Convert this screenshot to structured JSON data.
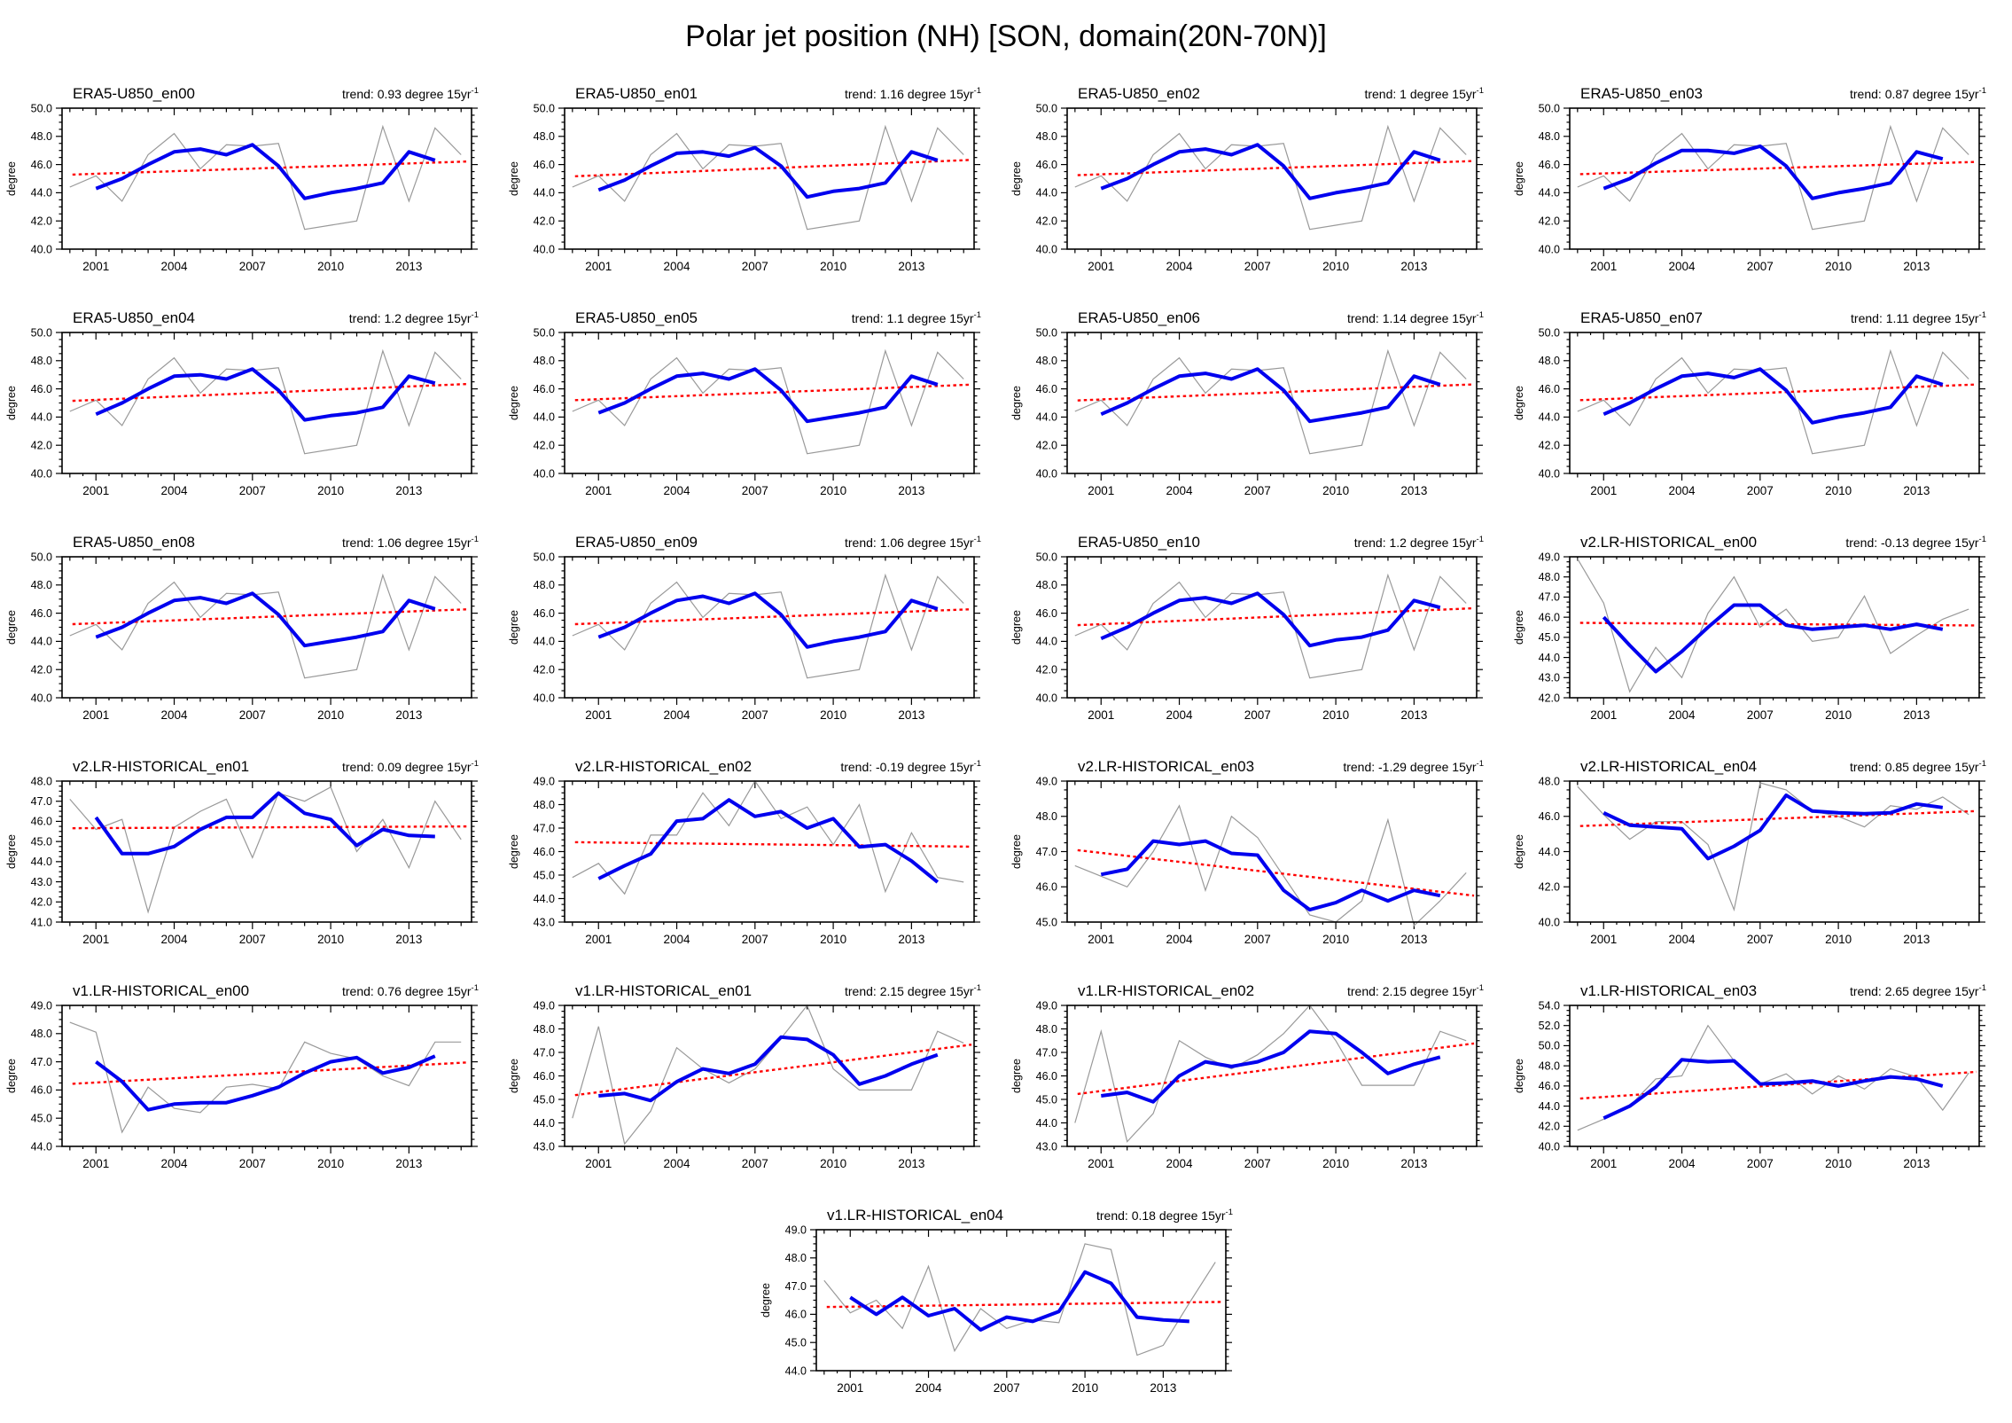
{
  "figure": {
    "title": "Polar jet position (NH) [SON, domain(20N-70N)]",
    "trend_sup": "-1"
  },
  "colors": {
    "raw_line": "#999999",
    "smoothed_line": "#0000ee",
    "trend_line": "#ff0000",
    "frame": "#000000"
  },
  "axes": {
    "ylabel": "degree",
    "x_start": 1999.7,
    "x_end": 2015.4,
    "xticks": [
      2001,
      2004,
      2007,
      2010,
      2013
    ],
    "x_minor_step": 0.5,
    "raw_year_start": 2000,
    "smoothed_year_start": 2001
  },
  "chart_data": [
    {
      "type": "line",
      "name": "ERA5-U850_en00",
      "trend_text": "trend: 0.93 degree 15yr",
      "ymin": 40,
      "ymax": 50,
      "ystep": 2,
      "raw": [
        44.4,
        45.2,
        43.4,
        46.7,
        48.2,
        45.7,
        47.4,
        47.3,
        47.5,
        41.4,
        41.7,
        42.0,
        48.7,
        43.4,
        48.6,
        46.7
      ],
      "smoothed": [
        44.3,
        45.0,
        46.0,
        46.9,
        47.1,
        46.7,
        47.4,
        45.9,
        43.6,
        44.0,
        44.3,
        44.7,
        46.9,
        46.3
      ],
      "trend_line": [
        45.29,
        46.22
      ]
    },
    {
      "type": "line",
      "name": "ERA5-U850_en01",
      "trend_text": "trend: 1.16 degree 15yr",
      "ymin": 40,
      "ymax": 50,
      "ystep": 2,
      "raw": [
        44.4,
        45.2,
        43.4,
        46.7,
        48.2,
        45.7,
        47.4,
        47.3,
        47.5,
        41.4,
        41.7,
        42.0,
        48.7,
        43.4,
        48.6,
        46.7
      ],
      "smoothed": [
        44.2,
        44.9,
        45.9,
        46.8,
        46.9,
        46.6,
        47.2,
        45.9,
        43.7,
        44.1,
        44.3,
        44.7,
        46.9,
        46.3
      ],
      "trend_line": [
        45.17,
        46.33
      ]
    },
    {
      "type": "line",
      "name": "ERA5-U850_en02",
      "trend_text": "trend: 1 degree 15yr",
      "ymin": 40,
      "ymax": 50,
      "ystep": 2,
      "raw": [
        44.4,
        45.2,
        43.4,
        46.7,
        48.2,
        45.7,
        47.4,
        47.3,
        47.5,
        41.4,
        41.7,
        42.0,
        48.7,
        43.4,
        48.6,
        46.7
      ],
      "smoothed": [
        44.3,
        45.0,
        46.0,
        46.9,
        47.1,
        46.7,
        47.4,
        45.9,
        43.6,
        44.0,
        44.3,
        44.7,
        46.9,
        46.3
      ],
      "trend_line": [
        45.25,
        46.25
      ]
    },
    {
      "type": "line",
      "name": "ERA5-U850_en03",
      "trend_text": "trend: 0.87 degree 15yr",
      "ymin": 40,
      "ymax": 50,
      "ystep": 2,
      "raw": [
        44.4,
        45.2,
        43.4,
        46.7,
        48.2,
        45.7,
        47.4,
        47.3,
        47.5,
        41.4,
        41.7,
        42.0,
        48.7,
        43.4,
        48.6,
        46.7
      ],
      "smoothed": [
        44.3,
        45.0,
        46.1,
        47.0,
        47.0,
        46.8,
        47.3,
        45.9,
        43.6,
        44.0,
        44.3,
        44.7,
        46.9,
        46.4
      ],
      "trend_line": [
        45.32,
        46.19
      ]
    },
    {
      "type": "line",
      "name": "ERA5-U850_en04",
      "trend_text": "trend: 1.2 degree 15yr",
      "ymin": 40,
      "ymax": 50,
      "ystep": 2,
      "raw": [
        44.4,
        45.2,
        43.4,
        46.7,
        48.2,
        45.7,
        47.4,
        47.3,
        47.5,
        41.4,
        41.7,
        42.0,
        48.7,
        43.4,
        48.6,
        46.7
      ],
      "smoothed": [
        44.2,
        45.0,
        46.0,
        46.9,
        47.0,
        46.7,
        47.4,
        45.9,
        43.8,
        44.1,
        44.3,
        44.7,
        46.9,
        46.4
      ],
      "trend_line": [
        45.15,
        46.35
      ]
    },
    {
      "type": "line",
      "name": "ERA5-U850_en05",
      "trend_text": "trend: 1.1 degree 15yr",
      "ymin": 40,
      "ymax": 50,
      "ystep": 2,
      "raw": [
        44.4,
        45.2,
        43.4,
        46.7,
        48.2,
        45.7,
        47.4,
        47.3,
        47.5,
        41.4,
        41.7,
        42.0,
        48.7,
        43.4,
        48.6,
        46.7
      ],
      "smoothed": [
        44.3,
        45.0,
        46.0,
        46.9,
        47.1,
        46.7,
        47.4,
        45.9,
        43.7,
        44.0,
        44.3,
        44.7,
        46.9,
        46.3
      ],
      "trend_line": [
        45.2,
        46.3
      ]
    },
    {
      "type": "line",
      "name": "ERA5-U850_en06",
      "trend_text": "trend: 1.14 degree 15yr",
      "ymin": 40,
      "ymax": 50,
      "ystep": 2,
      "raw": [
        44.4,
        45.2,
        43.4,
        46.7,
        48.2,
        45.7,
        47.4,
        47.3,
        47.5,
        41.4,
        41.7,
        42.0,
        48.7,
        43.4,
        48.6,
        46.7
      ],
      "smoothed": [
        44.2,
        45.0,
        46.0,
        46.9,
        47.1,
        46.7,
        47.4,
        45.9,
        43.7,
        44.0,
        44.3,
        44.7,
        46.9,
        46.3
      ],
      "trend_line": [
        45.18,
        46.32
      ]
    },
    {
      "type": "line",
      "name": "ERA5-U850_en07",
      "trend_text": "trend: 1.11 degree 15yr",
      "ymin": 40,
      "ymax": 50,
      "ystep": 2,
      "raw": [
        44.4,
        45.2,
        43.4,
        46.7,
        48.2,
        45.7,
        47.4,
        47.3,
        47.5,
        41.4,
        41.7,
        42.0,
        48.7,
        43.4,
        48.6,
        46.7
      ],
      "smoothed": [
        44.2,
        45.0,
        46.0,
        46.9,
        47.1,
        46.8,
        47.4,
        45.9,
        43.6,
        44.0,
        44.3,
        44.7,
        46.9,
        46.3
      ],
      "trend_line": [
        45.2,
        46.31
      ]
    },
    {
      "type": "line",
      "name": "ERA5-U850_en08",
      "trend_text": "trend: 1.06 degree 15yr",
      "ymin": 40,
      "ymax": 50,
      "ystep": 2,
      "raw": [
        44.4,
        45.2,
        43.4,
        46.7,
        48.2,
        45.7,
        47.4,
        47.3,
        47.5,
        41.4,
        41.7,
        42.0,
        48.7,
        43.4,
        48.6,
        46.7
      ],
      "smoothed": [
        44.3,
        45.0,
        46.0,
        46.9,
        47.1,
        46.7,
        47.4,
        45.9,
        43.7,
        44.0,
        44.3,
        44.7,
        46.9,
        46.3
      ],
      "trend_line": [
        45.22,
        46.28
      ]
    },
    {
      "type": "line",
      "name": "ERA5-U850_en09",
      "trend_text": "trend: 1.06 degree 15yr",
      "ymin": 40,
      "ymax": 50,
      "ystep": 2,
      "raw": [
        44.4,
        45.2,
        43.4,
        46.7,
        48.2,
        45.7,
        47.4,
        47.3,
        47.5,
        41.4,
        41.7,
        42.0,
        48.7,
        43.4,
        48.6,
        46.7
      ],
      "smoothed": [
        44.3,
        45.0,
        46.0,
        46.9,
        47.2,
        46.7,
        47.4,
        45.9,
        43.6,
        44.0,
        44.3,
        44.7,
        46.9,
        46.3
      ],
      "trend_line": [
        45.22,
        46.28
      ]
    },
    {
      "type": "line",
      "name": "ERA5-U850_en10",
      "trend_text": "trend: 1.2 degree 15yr",
      "ymin": 40,
      "ymax": 50,
      "ystep": 2,
      "raw": [
        44.4,
        45.2,
        43.4,
        46.7,
        48.2,
        45.7,
        47.4,
        47.3,
        47.5,
        41.4,
        41.7,
        42.0,
        48.7,
        43.4,
        48.6,
        46.7
      ],
      "smoothed": [
        44.2,
        45.0,
        46.0,
        46.9,
        47.1,
        46.7,
        47.4,
        45.9,
        43.7,
        44.1,
        44.3,
        44.8,
        46.9,
        46.4
      ],
      "trend_line": [
        45.15,
        46.35
      ]
    },
    {
      "type": "line",
      "name": "v2.LR-HISTORICAL_en00",
      "trend_text": "trend: -0.13 degree 15yr",
      "ymin": 42,
      "ymax": 49,
      "ystep": 1,
      "raw": [
        48.9,
        46.7,
        42.3,
        44.5,
        43.0,
        46.2,
        48.0,
        45.5,
        46.4,
        44.8,
        45.0,
        47.05,
        44.2,
        45.1,
        45.9,
        46.4
      ],
      "smoothed": [
        46.0,
        44.6,
        43.3,
        44.3,
        45.5,
        46.6,
        46.6,
        45.6,
        45.4,
        45.5,
        45.6,
        45.4,
        45.65,
        45.4
      ],
      "trend_line": [
        45.72,
        45.59
      ]
    },
    {
      "type": "line",
      "name": "v2.LR-HISTORICAL_en01",
      "trend_text": "trend: 0.09 degree 15yr",
      "ymin": 41,
      "ymax": 48,
      "ystep": 1,
      "raw": [
        47.1,
        45.6,
        46.1,
        41.5,
        45.7,
        46.5,
        47.1,
        44.2,
        47.4,
        47.0,
        47.7,
        44.5,
        46.1,
        43.7,
        47.0,
        45.1
      ],
      "smoothed": [
        46.2,
        44.4,
        44.4,
        44.75,
        45.6,
        46.2,
        46.2,
        47.4,
        46.4,
        46.1,
        44.8,
        45.6,
        45.3,
        45.25
      ],
      "trend_line": [
        45.66,
        45.75
      ]
    },
    {
      "type": "line",
      "name": "v2.LR-HISTORICAL_en02",
      "trend_text": "trend: -0.19 degree 15yr",
      "ymin": 43,
      "ymax": 49,
      "ystep": 1,
      "raw": [
        44.9,
        45.5,
        44.2,
        46.7,
        46.7,
        48.5,
        47.1,
        49.0,
        47.4,
        47.9,
        46.3,
        48.0,
        44.3,
        46.8,
        44.9,
        44.7
      ],
      "smoothed": [
        44.85,
        45.4,
        45.9,
        47.3,
        47.4,
        48.2,
        47.5,
        47.7,
        47.0,
        47.4,
        46.2,
        46.3,
        45.6,
        44.7
      ],
      "trend_line": [
        46.4,
        46.21
      ]
    },
    {
      "type": "line",
      "name": "v2.LR-HISTORICAL_en03",
      "trend_text": "trend: -1.29 degree 15yr",
      "ymin": 45,
      "ymax": 49,
      "ystep": 1,
      "raw": [
        46.6,
        46.3,
        46.0,
        47.0,
        48.3,
        45.9,
        48.0,
        47.4,
        46.3,
        45.2,
        45.0,
        45.6,
        47.9,
        44.9,
        45.6,
        46.4
      ],
      "smoothed": [
        46.35,
        46.5,
        47.3,
        47.2,
        47.3,
        46.95,
        46.9,
        45.9,
        45.35,
        45.55,
        45.9,
        45.6,
        45.9,
        45.75
      ],
      "trend_line": [
        47.04,
        45.75
      ]
    },
    {
      "type": "line",
      "name": "v2.LR-HISTORICAL_en04",
      "trend_text": "trend: 0.85 degree 15yr",
      "ymin": 40,
      "ymax": 48,
      "ystep": 2,
      "raw": [
        47.7,
        46.1,
        44.7,
        45.7,
        45.7,
        44.4,
        40.7,
        47.9,
        47.5,
        46.3,
        46.0,
        45.4,
        46.6,
        46.4,
        47.1,
        46.1
      ],
      "smoothed": [
        46.2,
        45.5,
        45.4,
        45.3,
        43.6,
        44.3,
        45.2,
        47.2,
        46.3,
        46.2,
        46.15,
        46.2,
        46.7,
        46.5
      ],
      "trend_line": [
        45.45,
        46.3
      ]
    },
    {
      "type": "line",
      "name": "v1.LR-HISTORICAL_en00",
      "trend_text": "trend: 0.76 degree 15yr",
      "ymin": 44,
      "ymax": 49,
      "ystep": 1,
      "raw": [
        48.4,
        48.05,
        44.5,
        46.1,
        45.35,
        45.2,
        46.1,
        46.2,
        46.05,
        47.7,
        47.3,
        47.1,
        46.5,
        46.15,
        47.7,
        47.7
      ],
      "smoothed": [
        47.0,
        46.3,
        45.3,
        45.5,
        45.55,
        45.55,
        45.8,
        46.1,
        46.6,
        47.0,
        47.15,
        46.6,
        46.8,
        47.2
      ],
      "trend_line": [
        46.22,
        46.98
      ]
    },
    {
      "type": "line",
      "name": "v1.LR-HISTORICAL_en01",
      "trend_text": "trend: 2.15 degree 15yr",
      "ymin": 43,
      "ymax": 49,
      "ystep": 1,
      "raw": [
        44.2,
        48.1,
        43.1,
        44.5,
        47.2,
        46.3,
        45.7,
        46.3,
        47.6,
        49.0,
        46.3,
        45.4,
        45.4,
        45.4,
        47.9,
        47.4
      ],
      "smoothed": [
        45.15,
        45.25,
        44.95,
        45.75,
        46.3,
        46.1,
        46.5,
        47.65,
        47.55,
        46.9,
        45.65,
        46.0,
        46.5,
        46.9
      ],
      "trend_line": [
        45.18,
        47.33
      ]
    },
    {
      "type": "line",
      "name": "v1.LR-HISTORICAL_en02",
      "trend_text": "trend: 2.15 degree 15yr",
      "ymin": 43,
      "ymax": 49,
      "ystep": 1,
      "raw": [
        44.0,
        47.9,
        43.2,
        44.4,
        47.5,
        46.8,
        46.3,
        46.9,
        47.8,
        49.0,
        47.5,
        45.6,
        45.6,
        45.6,
        47.9,
        47.5
      ],
      "smoothed": [
        45.15,
        45.3,
        44.9,
        46.0,
        46.6,
        46.4,
        46.6,
        47.0,
        47.9,
        47.8,
        47.0,
        46.1,
        46.5,
        46.8
      ],
      "trend_line": [
        45.23,
        47.38
      ]
    },
    {
      "type": "line",
      "name": "v1.LR-HISTORICAL_en03",
      "trend_text": "trend: 2.65 degree 15yr",
      "ymin": 40,
      "ymax": 54,
      "ystep": 2,
      "raw": [
        41.6,
        42.7,
        44.0,
        46.7,
        47.0,
        52.0,
        48.5,
        46.2,
        47.2,
        45.2,
        47.0,
        45.7,
        47.7,
        46.9,
        43.6,
        47.3
      ],
      "smoothed": [
        42.8,
        44.0,
        45.9,
        48.6,
        48.4,
        48.5,
        46.2,
        46.3,
        46.5,
        46.0,
        46.5,
        46.9,
        46.7,
        46.0
      ],
      "trend_line": [
        44.75,
        47.4
      ]
    },
    {
      "type": "line",
      "name": "v1.LR-HISTORICAL_en04",
      "trend_text": "trend: 0.18 degree 15yr",
      "ymin": 44,
      "ymax": 49,
      "ystep": 1,
      "raw": [
        47.2,
        46.05,
        46.5,
        45.5,
        47.7,
        44.7,
        46.2,
        45.5,
        45.8,
        45.7,
        48.5,
        48.3,
        44.55,
        44.9,
        46.4,
        47.85
      ],
      "smoothed": [
        46.6,
        46.0,
        46.6,
        45.95,
        46.2,
        45.45,
        45.9,
        45.75,
        46.1,
        47.5,
        47.1,
        45.9,
        45.8,
        45.75
      ],
      "trend_line": [
        46.26,
        46.44
      ]
    }
  ]
}
